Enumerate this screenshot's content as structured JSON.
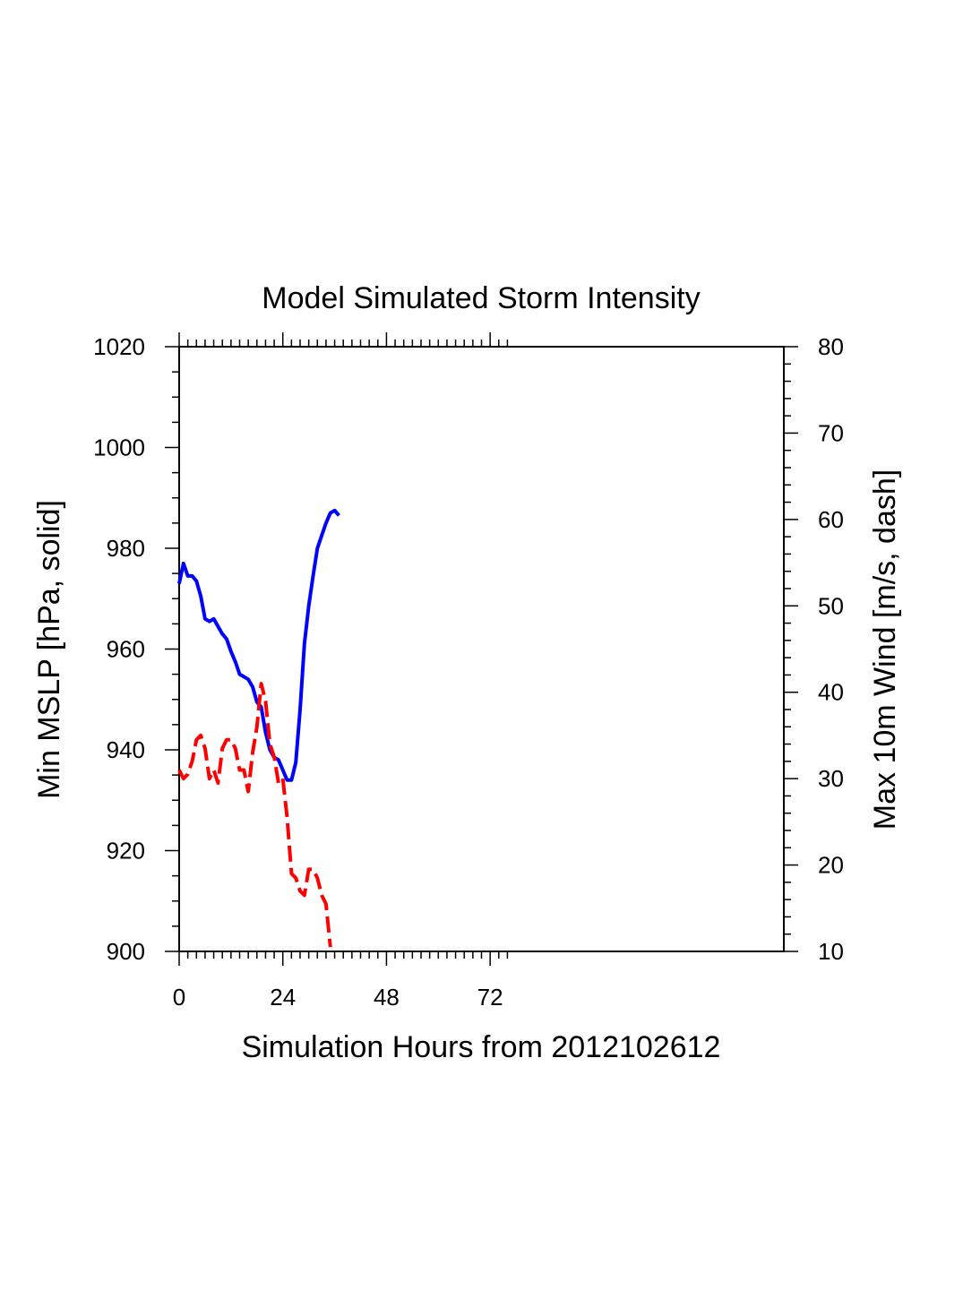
{
  "chart_data": {
    "type": "line",
    "title": "Model Simulated Storm Intensity",
    "xlabel": "Simulation Hours from 2012102612",
    "ylabel_left": "Min MSLP  [hPa, solid]",
    "ylabel_right": "Max 10m Wind  [m/s, dash]",
    "xlim": [
      0,
      140
    ],
    "ylim_left": [
      900,
      1020
    ],
    "ylim_right": [
      10,
      80
    ],
    "x_ticks": [
      0,
      24,
      48,
      72
    ],
    "x_tick_labels": [
      "0",
      "24",
      "48",
      "72"
    ],
    "y_left_ticks": [
      900,
      920,
      940,
      960,
      980,
      1000,
      1020
    ],
    "y_left_tick_labels": [
      "900",
      "920",
      "940",
      "960",
      "980",
      "1000",
      "1020"
    ],
    "y_right_ticks": [
      10,
      20,
      30,
      40,
      50,
      60,
      70,
      80
    ],
    "y_right_tick_labels": [
      "10",
      "20",
      "30",
      "40",
      "50",
      "60",
      "70",
      "80"
    ],
    "series": [
      {
        "name": "Min MSLP",
        "axis": "left",
        "style": "solid",
        "color": "#0000ff",
        "x": [
          0,
          1,
          2,
          3,
          4,
          5,
          6,
          7,
          8,
          9,
          10,
          11,
          12,
          13,
          14,
          15,
          16,
          17,
          18,
          19,
          20,
          21,
          22,
          23,
          24,
          25,
          26,
          27,
          28,
          29,
          30,
          31,
          32,
          33,
          34,
          35,
          36,
          37,
          38,
          39,
          40,
          41,
          42
        ],
        "values": [
          973,
          977,
          974.5,
          974.5,
          973.5,
          970.5,
          966,
          965.5,
          966,
          964.5,
          963,
          962,
          959.5,
          957.5,
          955,
          954.5,
          954,
          952.5,
          949.5,
          948.5,
          943.5,
          940,
          938.5,
          938,
          936,
          934,
          934,
          937.5,
          948,
          961,
          968.5,
          974.5,
          980,
          982.5,
          985,
          987,
          987.5,
          986.5,
          null,
          null,
          null,
          null,
          null
        ],
        "x_extra_note": "",
        "v_extra_note": ""
      },
      {
        "name": "Max 10m Wind",
        "axis": "right",
        "style": "dashed",
        "color": "#ff0000",
        "x": [
          0,
          1,
          2,
          3,
          4,
          5,
          6,
          7,
          8,
          9,
          10,
          11,
          12,
          13,
          14,
          15,
          16,
          17,
          18,
          19,
          20,
          21,
          22,
          23,
          24,
          25,
          26,
          27,
          28,
          29,
          30,
          31,
          32,
          33,
          34,
          35,
          36,
          37,
          38,
          39,
          40
        ],
        "values": [
          31,
          30,
          30.5,
          32,
          34.5,
          35,
          33.5,
          30,
          31,
          29.5,
          33.5,
          34.5,
          34.5,
          33.5,
          31,
          31,
          28.5,
          33,
          36,
          41,
          39,
          34,
          32.5,
          29.5,
          30,
          25.5,
          19,
          18.5,
          17,
          16.5,
          19.5,
          19.5,
          18.5,
          16.5,
          15.5,
          10.5,
          null,
          null,
          null,
          null,
          null
        ]
      }
    ]
  }
}
